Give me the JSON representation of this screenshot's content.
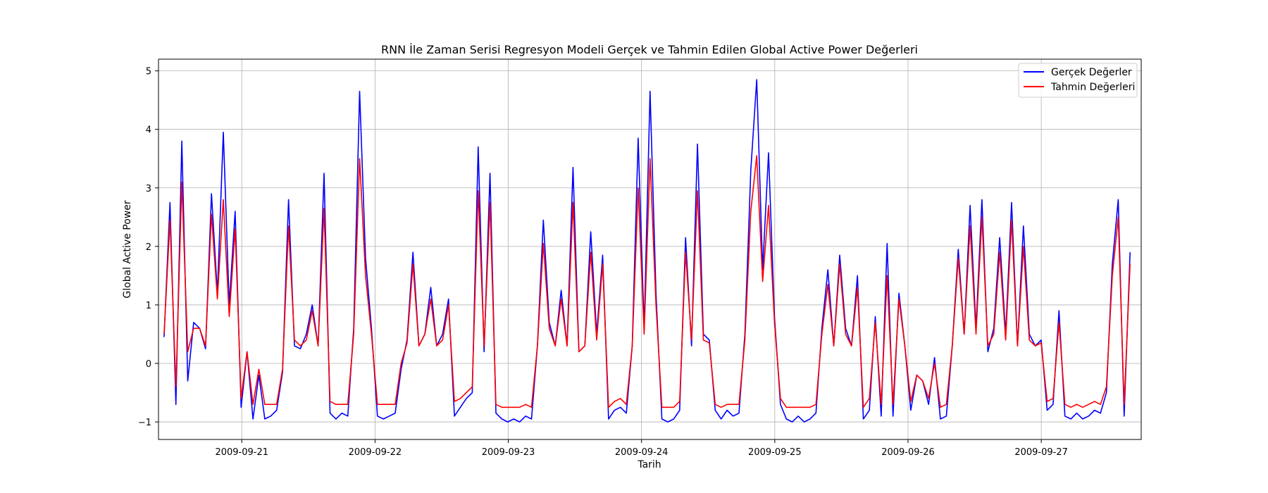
{
  "chart_data": {
    "type": "line",
    "title": "RNN İle Zaman Serisi Regresyon Modeli Gerçek ve Tahmin Edilen Global Active Power Değerleri",
    "xlabel": "Tarih",
    "ylabel": "Global Active Power",
    "xlim": [
      "2009-09-20T09:00",
      "2009-09-27T18:00"
    ],
    "ylim": [
      -1.3,
      5.2
    ],
    "x_ticks": [
      "2009-09-21",
      "2009-09-22",
      "2009-09-23",
      "2009-09-24",
      "2009-09-25",
      "2009-09-26",
      "2009-09-27"
    ],
    "y_ticks": [
      -1,
      0,
      1,
      2,
      3,
      4,
      5
    ],
    "grid": true,
    "legend_position": "top-right",
    "series_start": "2009-09-20T10:00",
    "series_end": "2009-09-27T16:00",
    "sampling": "hourly",
    "series": [
      {
        "name": "Gerçek Değerler",
        "color": "#0000ff",
        "values": [
          0.45,
          2.75,
          -0.7,
          3.8,
          -0.3,
          0.7,
          0.6,
          0.25,
          2.9,
          1.2,
          3.95,
          1.0,
          2.6,
          -0.75,
          0.2,
          -0.95,
          -0.2,
          -0.95,
          -0.9,
          -0.8,
          -0.15,
          2.8,
          0.3,
          0.25,
          0.5,
          1.0,
          0.3,
          3.25,
          -0.85,
          -0.95,
          -0.85,
          -0.9,
          0.6,
          4.65,
          1.8,
          0.6,
          -0.9,
          -0.95,
          -0.9,
          -0.85,
          -0.1,
          0.4,
          1.9,
          0.3,
          0.5,
          1.3,
          0.3,
          0.5,
          1.1,
          -0.9,
          -0.75,
          -0.6,
          -0.5,
          3.7,
          0.2,
          3.25,
          -0.85,
          -0.95,
          -1.0,
          -0.95,
          -1.0,
          -0.9,
          -0.95,
          0.3,
          2.45,
          0.7,
          0.3,
          1.25,
          0.3,
          3.35,
          0.2,
          0.3,
          2.25,
          0.5,
          1.85,
          -0.95,
          -0.8,
          -0.75,
          -0.85,
          0.3,
          3.85,
          0.6,
          4.65,
          1.2,
          -0.95,
          -1.0,
          -0.95,
          -0.8,
          2.15,
          0.3,
          3.75,
          0.5,
          0.4,
          -0.8,
          -0.95,
          -0.8,
          -0.9,
          -0.85,
          0.5,
          3.3,
          4.85,
          1.6,
          3.6,
          0.8,
          -0.7,
          -0.95,
          -1.0,
          -0.9,
          -1.0,
          -0.95,
          -0.85,
          0.6,
          1.6,
          0.3,
          1.85,
          0.6,
          0.3,
          1.5,
          -0.95,
          -0.8,
          0.8,
          -0.9,
          2.05,
          -0.9,
          1.2,
          0.3,
          -0.8,
          -0.2,
          -0.3,
          -0.7,
          0.1,
          -0.95,
          -0.9,
          0.3,
          1.95,
          0.5,
          2.7,
          0.6,
          2.8,
          0.2,
          0.6,
          2.15,
          0.5,
          2.75,
          0.3,
          2.35,
          0.5,
          0.3,
          0.4,
          -0.8,
          -0.7,
          0.9,
          -0.9,
          -0.95,
          -0.85,
          -0.95,
          -0.9,
          -0.8,
          -0.85,
          -0.5,
          1.7,
          2.8,
          -0.9,
          1.9
        ]
      },
      {
        "name": "Tahmin Değerleri",
        "color": "#ff0000",
        "values": [
          0.5,
          2.45,
          -0.4,
          3.1,
          0.2,
          0.6,
          0.6,
          0.3,
          2.55,
          1.1,
          2.8,
          0.8,
          2.3,
          -0.6,
          0.2,
          -0.7,
          -0.1,
          -0.7,
          -0.7,
          -0.7,
          -0.1,
          2.35,
          0.4,
          0.3,
          0.4,
          0.9,
          0.3,
          2.65,
          -0.65,
          -0.7,
          -0.7,
          -0.7,
          0.5,
          3.5,
          1.5,
          0.5,
          -0.7,
          -0.7,
          -0.7,
          -0.7,
          0.0,
          0.35,
          1.7,
          0.3,
          0.5,
          1.1,
          0.3,
          0.4,
          1.0,
          -0.65,
          -0.6,
          -0.5,
          -0.4,
          2.95,
          0.3,
          2.75,
          -0.7,
          -0.75,
          -0.75,
          -0.75,
          -0.75,
          -0.7,
          -0.75,
          0.3,
          2.05,
          0.6,
          0.3,
          1.1,
          0.3,
          2.75,
          0.2,
          0.3,
          1.9,
          0.4,
          1.7,
          -0.75,
          -0.65,
          -0.6,
          -0.7,
          0.3,
          3.0,
          0.5,
          3.5,
          1.0,
          -0.75,
          -0.75,
          -0.75,
          -0.65,
          1.9,
          0.4,
          2.95,
          0.4,
          0.35,
          -0.7,
          -0.75,
          -0.7,
          -0.7,
          -0.7,
          0.4,
          2.6,
          3.55,
          1.4,
          2.7,
          0.7,
          -0.6,
          -0.75,
          -0.75,
          -0.75,
          -0.75,
          -0.75,
          -0.7,
          0.5,
          1.35,
          0.3,
          1.7,
          0.5,
          0.3,
          1.3,
          -0.75,
          -0.6,
          0.7,
          -0.7,
          1.5,
          -0.7,
          1.1,
          0.3,
          -0.65,
          -0.2,
          -0.3,
          -0.6,
          0.0,
          -0.75,
          -0.7,
          0.3,
          1.8,
          0.5,
          2.35,
          0.5,
          2.5,
          0.3,
          0.5,
          1.9,
          0.4,
          2.45,
          0.3,
          2.0,
          0.4,
          0.3,
          0.35,
          -0.65,
          -0.6,
          0.7,
          -0.7,
          -0.75,
          -0.7,
          -0.75,
          -0.7,
          -0.65,
          -0.7,
          -0.4,
          1.5,
          2.5,
          -0.7,
          1.7
        ]
      }
    ]
  }
}
